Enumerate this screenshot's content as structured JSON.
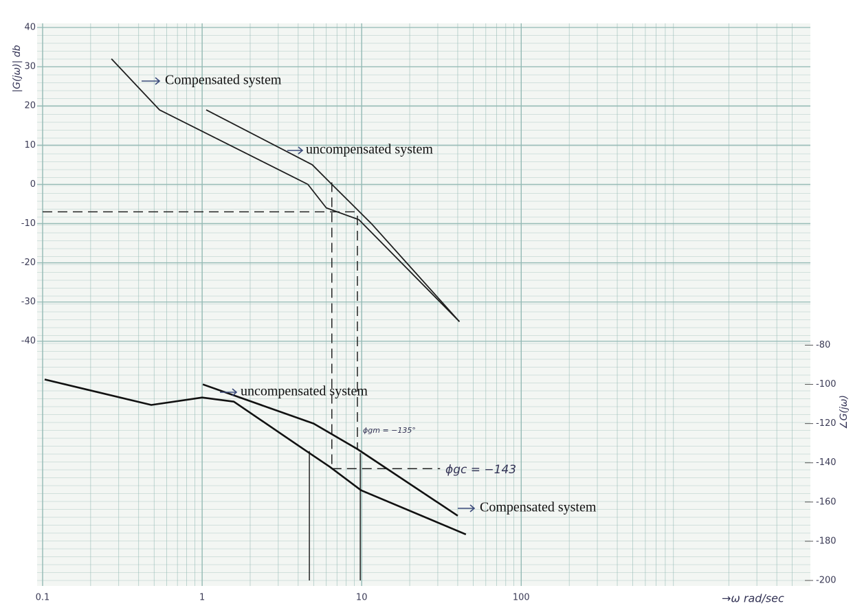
{
  "chart_data": {
    "type": "bode",
    "xscale": "log",
    "xlim": [
      0.1,
      6000
    ],
    "xticks": [
      0.1,
      1,
      10,
      100
    ],
    "ylim": [
      -101,
      40
    ],
    "yticks": [
      40,
      30,
      20,
      10,
      0,
      -10,
      -20,
      -30,
      -40
    ],
    "y2lim": [
      -200,
      82
    ],
    "y2ticks": [
      -80,
      -100,
      -120,
      -140,
      -160,
      -180,
      -200
    ],
    "y_label": "|G(jω)| db",
    "y2_label": "∠G(jω)",
    "x_label": "→ω rad/sec",
    "grid": true,
    "minor_grid": true,
    "grid_color": "#93b9b4",
    "paper_color": "#f3f6f3",
    "series": [
      {
        "name": "Compensated system",
        "axis": "y",
        "color": "#1e1e1e",
        "x": [
          0.27,
          0.54,
          4.6,
          6.0,
          9.6,
          41
        ],
        "values": [
          32,
          19,
          0,
          -6,
          -9,
          -35
        ]
      },
      {
        "name": "uncompensated system",
        "axis": "y",
        "color": "#1e1e1e",
        "x": [
          1.06,
          4.9,
          6.5,
          11.5,
          41
        ],
        "values": [
          19,
          5,
          0,
          -10,
          -35
        ]
      },
      {
        "name": "uncompensated system",
        "axis": "y2",
        "color": "#111111",
        "x": [
          1.01,
          5,
          9.4,
          40
        ],
        "values": [
          -100,
          -120,
          -133,
          -167
        ]
      },
      {
        "name": "Compensated system",
        "axis": "y2",
        "color": "#111111",
        "x": [
          0.103,
          0.48,
          1,
          1.58,
          4.5,
          6.3,
          9.9,
          45
        ],
        "values": [
          -97.5,
          -110.5,
          -106.7,
          -108.8,
          -134,
          -142,
          -154,
          -176.5
        ]
      }
    ],
    "guides": [
      {
        "axis": "y",
        "dash": true,
        "x": [
          0.1,
          9.4
        ],
        "y": [
          -7,
          -7
        ]
      },
      {
        "axis": "y2",
        "dash": true,
        "x": [
          6.5,
          6.5
        ],
        "y": [
          3,
          -143
        ]
      },
      {
        "axis": "y2",
        "dash": true,
        "x": [
          9.4,
          9.4
        ],
        "y": [
          -14,
          -133
        ]
      },
      {
        "axis": "y2",
        "dash": true,
        "x": [
          6.5,
          31
        ],
        "y": [
          -143,
          -143
        ]
      },
      {
        "axis": "y2",
        "dash": false,
        "x": [
          4.7,
          4.7
        ],
        "y": [
          -134,
          -200
        ]
      },
      {
        "axis": "y2",
        "dash": false,
        "x": [
          9.8,
          9.8
        ],
        "y": [
          -135,
          -200
        ]
      }
    ],
    "annotations": [
      "ϕgm = −135°",
      "ϕgc = −143"
    ]
  }
}
